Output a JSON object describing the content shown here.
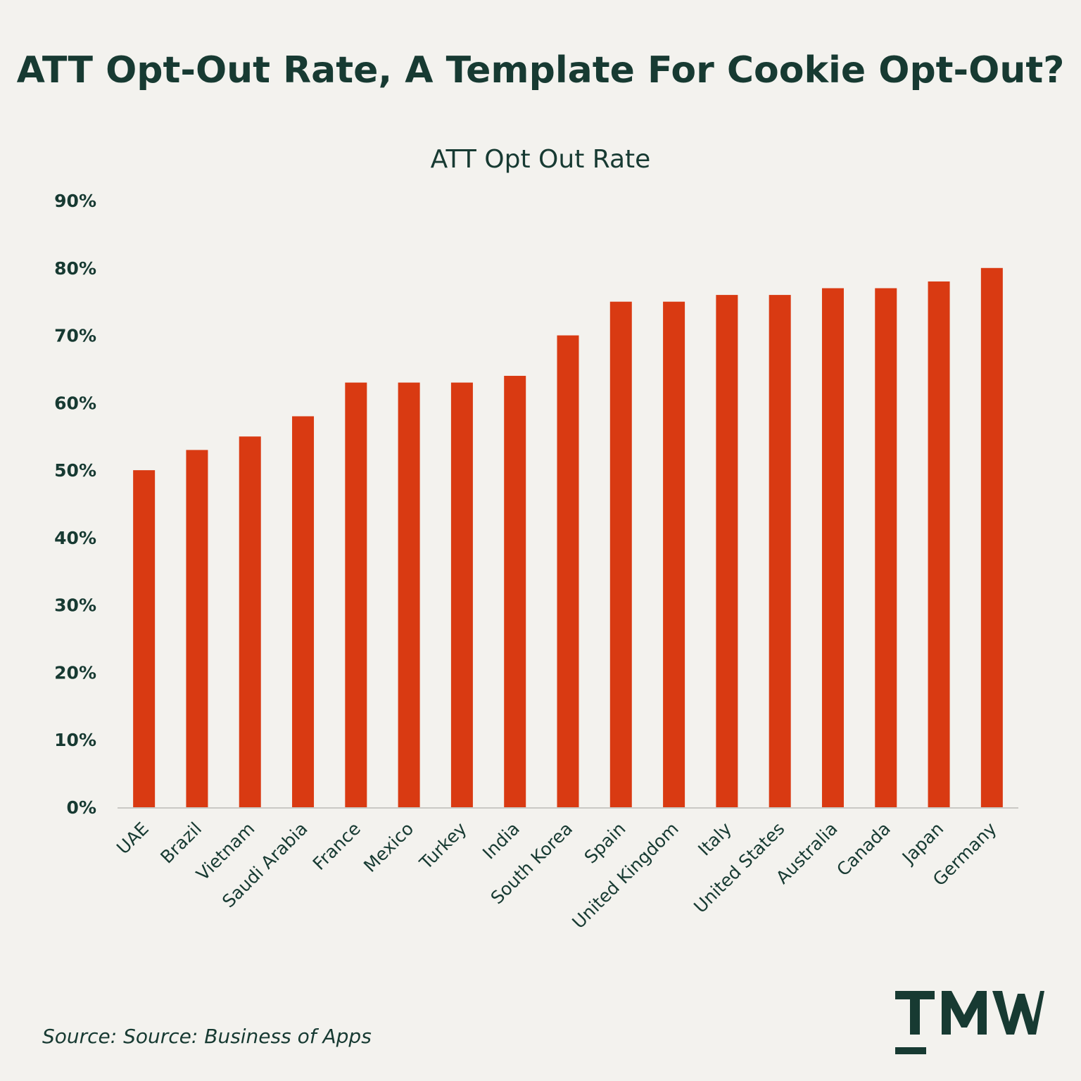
{
  "headline": "ATT Opt-Out Rate, A Template For Cookie Opt-Out?",
  "source": "Source: Source: Business of Apps",
  "logo_text": "TMW",
  "colors": {
    "background": "#f3f2ee",
    "text": "#173a32",
    "bar": "#d93a12",
    "axis": "#c9c9c4"
  },
  "chart_data": {
    "type": "bar",
    "title": "ATT Opt Out Rate",
    "xlabel": "",
    "ylabel": "",
    "categories": [
      "UAE",
      "Brazil",
      "Vietnam",
      "Saudi Arabia",
      "France",
      "Mexico",
      "Turkey",
      "India",
      "South Korea",
      "Spain",
      "United Kingdom",
      "Italy",
      "United States",
      "Australia",
      "Canada",
      "Japan",
      "Germany"
    ],
    "values": [
      50,
      53,
      55,
      58,
      63,
      63,
      63,
      64,
      70,
      75,
      75,
      76,
      76,
      77,
      77,
      78,
      80
    ],
    "ylim": [
      0,
      90
    ],
    "yticks": [
      0,
      10,
      20,
      30,
      40,
      50,
      60,
      70,
      80,
      90
    ],
    "ytick_labels": [
      "0%",
      "10%",
      "20%",
      "30%",
      "40%",
      "50%",
      "60%",
      "70%",
      "80%",
      "90%"
    ],
    "grid": false,
    "legend": "none"
  }
}
